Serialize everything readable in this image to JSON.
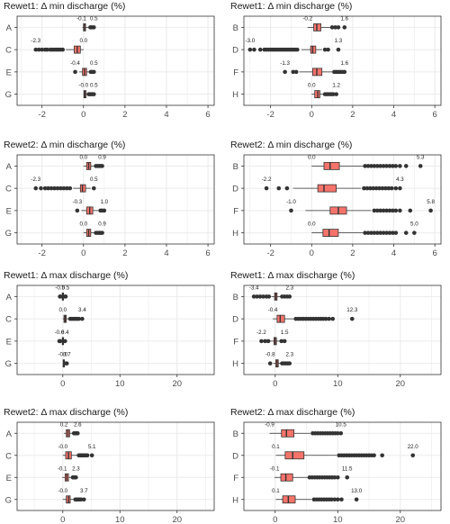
{
  "chart_data": [
    {
      "type": "boxplot",
      "title": "Rewet1: Δ min discharge (%)",
      "xlim": [
        -3.2,
        6.3
      ],
      "xticks": [
        -2,
        0,
        2,
        4,
        6
      ],
      "categories": [
        "A",
        "C",
        "E",
        "G"
      ],
      "boxes": [
        {
          "category": "A",
          "min": -0.1,
          "max": 0.5,
          "min_label": "-0.1",
          "max_label": "0.5",
          "q1": 0.0,
          "median": 0.05,
          "q3": 0.1,
          "wlo": -0.05,
          "whi": 0.3,
          "outliers": [
            0.33,
            0.38,
            0.43,
            0.5
          ],
          "fill": "#f5736a"
        },
        {
          "category": "C",
          "min": -2.3,
          "max": 0.0,
          "min_label": "-2.3",
          "max_label": "0.0",
          "q1": -0.45,
          "median": -0.3,
          "q3": -0.15,
          "wlo": -0.85,
          "whi": 0.0,
          "outliers": [
            -2.3,
            -2.15,
            -2.0,
            -1.85,
            -1.75,
            -1.6,
            -1.5,
            -1.4,
            -1.3,
            -1.2,
            -1.1,
            -1.0
          ],
          "fill": "#f5736a"
        },
        {
          "category": "E",
          "min": -0.4,
          "max": 0.5,
          "min_label": "-0.4",
          "max_label": "0.5",
          "q1": -0.05,
          "median": 0.05,
          "q3": 0.15,
          "wlo": -0.2,
          "whi": 0.3,
          "outliers": [
            -0.4,
            0.35,
            0.42,
            0.5
          ],
          "fill": "#f5736a"
        },
        {
          "category": "G",
          "min": -0.0,
          "max": 0.5,
          "min_label": "-0.0",
          "max_label": "0.5",
          "q1": 0.02,
          "median": 0.06,
          "q3": 0.12,
          "wlo": 0.0,
          "whi": 0.22,
          "outliers": [
            0.25,
            0.3,
            0.36,
            0.42,
            0.5
          ],
          "fill": "#f5736a"
        }
      ]
    },
    {
      "type": "boxplot",
      "title": "Rewet1: Δ min discharge (%)",
      "xlim": [
        -3.3,
        6.3
      ],
      "xticks": [
        -2,
        0,
        2,
        4,
        6
      ],
      "categories": [
        "B",
        "D",
        "F",
        "H"
      ],
      "boxes": [
        {
          "category": "B",
          "min": -0.2,
          "max": 1.6,
          "min_label": "-0.2",
          "max_label": "1.6",
          "q1": 0.1,
          "median": 0.25,
          "q3": 0.45,
          "wlo": -0.2,
          "whi": 0.9,
          "outliers": [
            1.0,
            1.15,
            1.3,
            1.6
          ],
          "fill": "#f5736a"
        },
        {
          "category": "D",
          "min": -3.0,
          "max": 1.3,
          "min_label": "-3.0",
          "max_label": "1.3",
          "q1": -0.05,
          "median": 0.05,
          "q3": 0.2,
          "wlo": -0.5,
          "whi": 0.5,
          "outliers": [
            -3.0,
            -2.8,
            -2.5,
            -2.3,
            -2.2,
            -2.1,
            -2.0,
            -1.9,
            -1.8,
            -1.7,
            -1.6,
            -1.5,
            -1.4,
            -1.3,
            -1.2,
            -1.1,
            -1.0,
            -0.9,
            -0.8,
            -0.7,
            0.65,
            0.8,
            1.3
          ],
          "fill": "#f5736a"
        },
        {
          "category": "F",
          "min": -1.3,
          "max": 1.6,
          "min_label": "-1.3",
          "max_label": "1.6",
          "q1": 0.05,
          "median": 0.25,
          "q3": 0.5,
          "wlo": -0.6,
          "whi": 1.0,
          "outliers": [
            -1.3,
            -0.9,
            -0.75,
            1.1,
            1.2,
            1.3,
            1.4,
            1.5,
            1.6
          ],
          "fill": "#f5736a"
        },
        {
          "category": "H",
          "min": 0.0,
          "max": 1.2,
          "min_label": "0.0",
          "max_label": "1.2",
          "q1": 0.15,
          "median": 0.3,
          "q3": 0.4,
          "wlo": 0.0,
          "whi": 0.6,
          "outliers": [
            0.65,
            0.75,
            0.85,
            0.95,
            1.05,
            1.2
          ],
          "fill": "#f5736a"
        }
      ]
    },
    {
      "type": "boxplot",
      "title": "Rewet2: Δ min discharge (%)",
      "xlim": [
        -3.2,
        6.3
      ],
      "xticks": [
        -2,
        0,
        2,
        4,
        6
      ],
      "categories": [
        "A",
        "C",
        "E",
        "G"
      ],
      "boxes": [
        {
          "category": "A",
          "min": 0.0,
          "max": 0.9,
          "min_label": "0.0",
          "max_label": "0.9",
          "q1": 0.15,
          "median": 0.25,
          "q3": 0.35,
          "wlo": 0.0,
          "whi": 0.55,
          "outliers": [
            0.6,
            0.68,
            0.76,
            0.83,
            0.9
          ],
          "fill": "#f5736a"
        },
        {
          "category": "C",
          "min": -2.3,
          "max": 0.5,
          "min_label": "-2.3",
          "max_label": "0.5",
          "q1": -0.15,
          "median": -0.05,
          "q3": 0.1,
          "wlo": -0.5,
          "whi": 0.35,
          "outliers": [
            -2.3,
            -2.05,
            -1.85,
            -1.7,
            -1.55,
            -1.4,
            -1.25,
            -1.1,
            -0.95,
            -0.8,
            -0.65,
            0.5
          ],
          "fill": "#f5736a"
        },
        {
          "category": "E",
          "min": -0.3,
          "max": 1.0,
          "min_label": "-0.3",
          "max_label": "1.0",
          "q1": 0.15,
          "median": 0.3,
          "q3": 0.45,
          "wlo": -0.1,
          "whi": 0.75,
          "outliers": [
            -0.3,
            0.82,
            0.9,
            1.0
          ],
          "fill": "#f5736a"
        },
        {
          "category": "G",
          "min": 0.0,
          "max": 0.9,
          "min_label": "0.0",
          "max_label": "0.9",
          "q1": 0.15,
          "median": 0.25,
          "q3": 0.35,
          "wlo": 0.0,
          "whi": 0.55,
          "outliers": [
            0.6,
            0.68,
            0.76,
            0.83,
            0.9
          ],
          "fill": "#f5736a"
        }
      ]
    },
    {
      "type": "boxplot",
      "title": "Rewet2: Δ min discharge (%)",
      "xlim": [
        -3.3,
        6.3
      ],
      "xticks": [
        -2,
        0,
        2,
        4,
        6
      ],
      "categories": [
        "B",
        "D",
        "F",
        "H"
      ],
      "boxes": [
        {
          "category": "B",
          "min": 0.0,
          "max": 5.3,
          "min_label": "0.0",
          "max_label": "5.3",
          "q1": 0.6,
          "median": 0.9,
          "q3": 1.35,
          "wlo": 0.0,
          "whi": 2.5,
          "outliers": [
            2.6,
            2.75,
            2.9,
            3.05,
            3.2,
            3.35,
            3.5,
            3.65,
            3.8,
            3.95,
            4.1,
            4.3,
            4.6,
            5.3
          ],
          "fill": "#f5736a"
        },
        {
          "category": "D",
          "min": -2.2,
          "max": 4.3,
          "min_label": "-2.2",
          "max_label": "4.3",
          "q1": 0.3,
          "median": 0.6,
          "q3": 1.2,
          "wlo": -0.9,
          "whi": 2.4,
          "outliers": [
            -2.2,
            -1.6,
            -1.2,
            2.55,
            2.7,
            2.85,
            3.0,
            3.15,
            3.3,
            3.45,
            3.6,
            3.75,
            3.9,
            4.1,
            4.3
          ],
          "fill": "#f5736a"
        },
        {
          "category": "F",
          "min": -1.0,
          "max": 5.8,
          "min_label": "-1.0",
          "max_label": "5.8",
          "q1": 0.9,
          "median": 1.3,
          "q3": 1.7,
          "wlo": -0.3,
          "whi": 2.9,
          "outliers": [
            -1.0,
            3.05,
            3.2,
            3.35,
            3.5,
            3.65,
            3.8,
            3.95,
            4.1,
            4.3,
            4.8,
            5.8
          ],
          "fill": "#f5736a"
        },
        {
          "category": "H",
          "min": 0.0,
          "max": 5.0,
          "min_label": "0.0",
          "max_label": "5.0",
          "q1": 0.55,
          "median": 0.85,
          "q3": 1.3,
          "wlo": 0.0,
          "whi": 2.5,
          "outliers": [
            2.6,
            2.75,
            2.9,
            3.05,
            3.2,
            3.35,
            3.5,
            3.65,
            3.8,
            3.95,
            4.1,
            4.6,
            5.0
          ],
          "fill": "#f5736a"
        }
      ]
    },
    {
      "type": "boxplot",
      "title": "Rewet1: Δ max discharge (%)",
      "xlim": [
        -8,
        26.5
      ],
      "xticks": [
        0,
        10,
        20
      ],
      "categories": [
        "A",
        "C",
        "E",
        "G"
      ],
      "boxes": [
        {
          "category": "A",
          "min": -0.5,
          "max": 0.5,
          "min_label": "-0.5",
          "max_label": "0.5",
          "q1": -0.1,
          "median": 0.0,
          "q3": 0.1,
          "wlo": -0.3,
          "whi": 0.3,
          "outliers": [
            -0.5,
            -0.4,
            0.4,
            0.5
          ],
          "fill": "#f5736a"
        },
        {
          "category": "C",
          "min": 0.0,
          "max": 3.4,
          "min_label": "0.0",
          "max_label": "3.4",
          "q1": 0.2,
          "median": 0.4,
          "q3": 0.6,
          "wlo": 0.0,
          "whi": 1.2,
          "outliers": [
            1.3,
            1.6,
            1.9,
            2.2,
            2.5,
            2.8,
            3.4
          ],
          "fill": "#f5736a"
        },
        {
          "category": "E",
          "min": -0.6,
          "max": 0.4,
          "min_label": "-0.6",
          "max_label": "0.4",
          "q1": -0.1,
          "median": 0.0,
          "q3": 0.1,
          "wlo": -0.3,
          "whi": 0.3,
          "outliers": [
            -0.6,
            -0.45,
            0.4
          ],
          "fill": "#f5736a"
        },
        {
          "category": "G",
          "min": -0.0,
          "max": 0.7,
          "min_label": "-0.0",
          "max_label": "0.7",
          "q1": 0.05,
          "median": 0.15,
          "q3": 0.25,
          "wlo": 0.0,
          "whi": 0.45,
          "outliers": [
            0.55,
            0.7
          ],
          "fill": "#f5736a"
        }
      ]
    },
    {
      "type": "boxplot",
      "title": "Rewet1: Δ max discharge (%)",
      "xlim": [
        -5,
        26.5
      ],
      "xticks": [
        0,
        10,
        20
      ],
      "categories": [
        "B",
        "D",
        "F",
        "H"
      ],
      "boxes": [
        {
          "category": "B",
          "min": -3.4,
          "max": 2.3,
          "min_label": "-3.4",
          "max_label": "2.3",
          "q1": -0.1,
          "median": 0.1,
          "q3": 0.3,
          "wlo": -0.6,
          "whi": 0.9,
          "outliers": [
            -3.4,
            -2.9,
            -2.4,
            -1.9,
            -1.4,
            -1.0,
            1.1,
            1.5,
            1.9,
            2.3
          ],
          "fill": "#f5736a"
        },
        {
          "category": "D",
          "min": -0.4,
          "max": 12.3,
          "min_label": "-0.4",
          "max_label": "12.3",
          "q1": 0.3,
          "median": 0.8,
          "q3": 1.5,
          "wlo": -0.4,
          "whi": 3.0,
          "outliers": [
            3.3,
            3.7,
            4.1,
            4.5,
            4.9,
            5.3,
            5.7,
            6.1,
            6.5,
            6.9,
            7.3,
            7.7,
            8.1,
            8.6,
            9.2,
            12.3
          ],
          "fill": "#f5736a"
        },
        {
          "category": "F",
          "min": -2.2,
          "max": 1.5,
          "min_label": "-2.2",
          "max_label": "1.5",
          "q1": -0.2,
          "median": 0.0,
          "q3": 0.2,
          "wlo": -0.8,
          "whi": 0.8,
          "outliers": [
            -2.2,
            -1.6,
            -1.1,
            1.0,
            1.5
          ],
          "fill": "#f5736a"
        },
        {
          "category": "H",
          "min": -0.8,
          "max": 2.3,
          "min_label": "-0.8",
          "max_label": "2.3",
          "q1": 0.1,
          "median": 0.3,
          "q3": 0.5,
          "wlo": -0.3,
          "whi": 1.0,
          "outliers": [
            -0.8,
            1.1,
            1.4,
            1.7,
            2.0,
            2.3
          ],
          "fill": "#f5736a"
        }
      ]
    },
    {
      "type": "boxplot",
      "title": "Rewet2: Δ max discharge (%)",
      "xlim": [
        -8,
        26.5
      ],
      "xticks": [
        0,
        10,
        20
      ],
      "categories": [
        "A",
        "C",
        "E",
        "G"
      ],
      "boxes": [
        {
          "category": "A",
          "min": 0.2,
          "max": 2.6,
          "min_label": "0.2",
          "max_label": "2.6",
          "q1": 0.6,
          "median": 0.9,
          "q3": 1.2,
          "wlo": 0.2,
          "whi": 1.8,
          "outliers": [
            1.95,
            2.1,
            2.3,
            2.45,
            2.6
          ],
          "fill": "#f5736a"
        },
        {
          "category": "C",
          "min": -0.0,
          "max": 5.1,
          "min_label": "-0.0",
          "max_label": "5.1",
          "q1": 0.5,
          "median": 1.0,
          "q3": 1.5,
          "wlo": 0.0,
          "whi": 2.6,
          "outliers": [
            2.8,
            3.0,
            3.2,
            3.4,
            3.6,
            3.8,
            4.0,
            4.3,
            5.1
          ],
          "fill": "#f5736a"
        },
        {
          "category": "E",
          "min": -0.1,
          "max": 2.3,
          "min_label": "-0.1",
          "max_label": "2.3",
          "q1": 0.4,
          "median": 0.7,
          "q3": 1.0,
          "wlo": -0.1,
          "whi": 1.6,
          "outliers": [
            1.75,
            1.9,
            2.1,
            2.3
          ],
          "fill": "#f5736a"
        },
        {
          "category": "G",
          "min": -0.0,
          "max": 3.7,
          "min_label": "-0.0",
          "max_label": "3.7",
          "q1": 0.6,
          "median": 1.0,
          "q3": 1.3,
          "wlo": 0.0,
          "whi": 2.0,
          "outliers": [
            2.2,
            2.45,
            2.7,
            2.95,
            3.2,
            3.7
          ],
          "fill": "#f5736a"
        }
      ]
    },
    {
      "type": "boxplot",
      "title": "Rewet2: Δ max discharge (%)",
      "xlim": [
        -5,
        26.5
      ],
      "xticks": [
        0,
        10,
        20
      ],
      "categories": [
        "B",
        "D",
        "F",
        "H"
      ],
      "boxes": [
        {
          "category": "B",
          "min": -0.9,
          "max": 10.5,
          "min_label": "-0.9",
          "max_label": "10.5",
          "q1": 1.0,
          "median": 1.8,
          "q3": 3.0,
          "wlo": -0.9,
          "whi": 5.6,
          "outliers": [
            6.0,
            6.4,
            6.8,
            7.2,
            7.6,
            8.0,
            8.4,
            8.8,
            9.2,
            9.6,
            10.0,
            10.5
          ],
          "fill": "#f5736a"
        },
        {
          "category": "D",
          "min": 0.1,
          "max": 22.0,
          "min_label": "0.1",
          "max_label": "22.0",
          "q1": 1.6,
          "median": 2.8,
          "q3": 4.6,
          "wlo": 0.1,
          "whi": 9.8,
          "outliers": [
            10.2,
            10.6,
            11.0,
            11.4,
            11.8,
            12.2,
            12.6,
            13.0,
            13.4,
            13.8,
            14.2,
            14.6,
            15.0,
            15.4,
            15.8,
            17.1,
            22.0
          ],
          "fill": "#f5736a"
        },
        {
          "category": "F",
          "min": -0.1,
          "max": 11.5,
          "min_label": "-0.1",
          "max_label": "11.5",
          "q1": 0.9,
          "median": 1.7,
          "q3": 2.8,
          "wlo": -0.1,
          "whi": 5.2,
          "outliers": [
            5.5,
            5.9,
            6.3,
            6.7,
            7.1,
            7.5,
            7.9,
            8.3,
            8.7,
            9.1,
            9.5,
            10.0,
            11.5
          ],
          "fill": "#f5736a"
        },
        {
          "category": "H",
          "min": 0.1,
          "max": 13.0,
          "min_label": "0.1",
          "max_label": "13.0",
          "q1": 1.2,
          "median": 2.1,
          "q3": 3.2,
          "wlo": 0.1,
          "whi": 5.8,
          "outliers": [
            6.2,
            6.6,
            7.0,
            7.4,
            7.8,
            8.2,
            8.6,
            9.0,
            9.5,
            10.0,
            10.6,
            13.0
          ],
          "fill": "#f5736a"
        }
      ]
    }
  ],
  "colors": {
    "box_fill": "#f5736a",
    "box_stroke": "#333333",
    "point": "#333333",
    "grid": "#ebebeb",
    "panel_border": "#333333"
  }
}
